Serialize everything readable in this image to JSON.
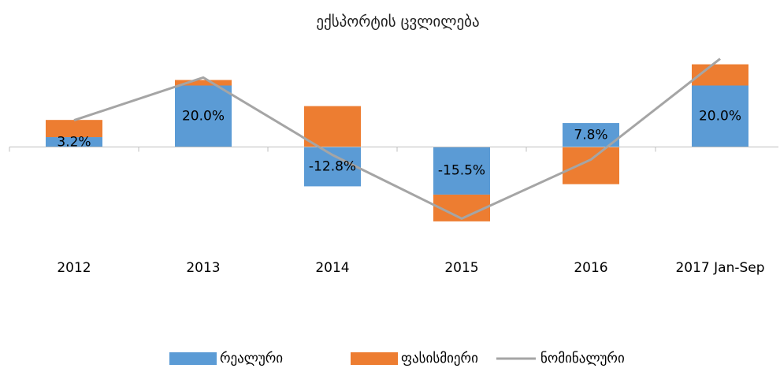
{
  "chart_data": {
    "type": "bar",
    "stacked": true,
    "title": "ექსპორტის ცვლილება",
    "categories": [
      "2012",
      "2013",
      "2014",
      "2015",
      "2016",
      "2017 Jan-Sep"
    ],
    "ylim": [
      -35,
      35
    ],
    "series": [
      {
        "name": "რეალური",
        "type": "bar",
        "color": "#5b9bd5",
        "values": [
          3.2,
          20.0,
          -12.8,
          -15.5,
          7.8,
          20.0
        ],
        "value_labels": [
          "3.2%",
          "20.0%",
          "-12.8%",
          "-15.5%",
          "7.8%",
          "20.0%"
        ]
      },
      {
        "name": "ფასისმიერი",
        "type": "bar",
        "color": "#ed7d31",
        "values": [
          5.6,
          1.8,
          13.3,
          -8.7,
          -12.1,
          6.9
        ]
      },
      {
        "name": "ნომინალური",
        "type": "line",
        "color": "#a5a5a5",
        "values": [
          8.7,
          22.6,
          -2.6,
          -23.3,
          -4.1,
          28.7
        ]
      }
    ],
    "legend": "bottom"
  }
}
